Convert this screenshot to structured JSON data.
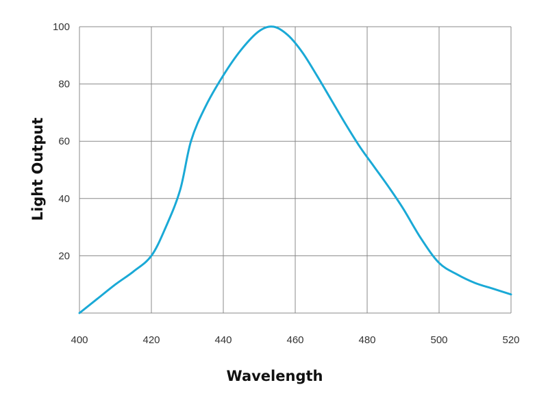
{
  "chart_data": {
    "type": "line",
    "title": "",
    "xlabel": "Wavelength",
    "ylabel": "Light Output",
    "xlim": [
      400,
      520
    ],
    "ylim": [
      0,
      100
    ],
    "x_ticks": [
      400,
      420,
      440,
      460,
      480,
      500,
      520
    ],
    "y_ticks": [
      20,
      40,
      60,
      80,
      100
    ],
    "grid": true,
    "legend": "none",
    "line_color": "#1aa9d6",
    "grid_color": "#888888",
    "series": [
      {
        "x": [
          400,
          405,
          410,
          415,
          420,
          424,
          428,
          431,
          435,
          440,
          445,
          450,
          454,
          458,
          462,
          466,
          470,
          474,
          478,
          482,
          486,
          490,
          495,
          500,
          505,
          510,
          515,
          520
        ],
        "y": [
          0,
          5,
          10,
          14.5,
          20,
          30,
          43,
          60,
          72,
          83,
          92,
          98.5,
          100,
          97,
          91,
          83,
          74.5,
          66,
          58,
          51,
          44,
          36.5,
          26,
          17.5,
          13.5,
          10.5,
          8.5,
          6.5
        ]
      }
    ]
  }
}
